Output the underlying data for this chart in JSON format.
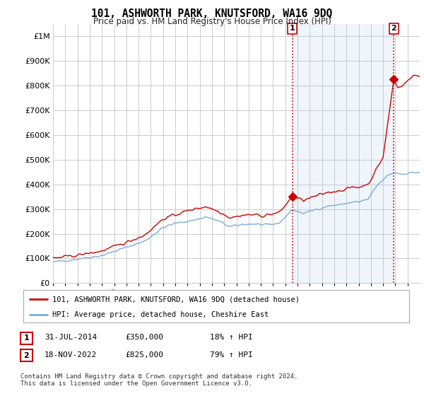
{
  "title": "101, ASHWORTH PARK, KNUTSFORD, WA16 9DQ",
  "subtitle": "Price paid vs. HM Land Registry's House Price Index (HPI)",
  "legend_line1": "101, ASHWORTH PARK, KNUTSFORD, WA16 9DQ (detached house)",
  "legend_line2": "HPI: Average price, detached house, Cheshire East",
  "footnote": "Contains HM Land Registry data © Crown copyright and database right 2024.\nThis data is licensed under the Open Government Licence v3.0.",
  "annotation1_date": "31-JUL-2014",
  "annotation1_price": "£350,000",
  "annotation1_hpi": "18% ↑ HPI",
  "annotation2_date": "18-NOV-2022",
  "annotation2_price": "£825,000",
  "annotation2_hpi": "79% ↑ HPI",
  "hpi_color": "#7aaddb",
  "sale_color": "#cc0000",
  "shade_color": "#ddeeff",
  "background_color": "#ffffff",
  "grid_color": "#cccccc",
  "sale1_x": 2014.58,
  "sale1_y": 350000,
  "sale2_x": 2022.88,
  "sale2_y": 825000,
  "ylim": [
    0,
    1050000
  ],
  "yticks": [
    0,
    100000,
    200000,
    300000,
    400000,
    500000,
    600000,
    700000,
    800000,
    900000,
    1000000
  ],
  "ytick_labels": [
    "£0",
    "£100K",
    "£200K",
    "£300K",
    "£400K",
    "£500K",
    "£600K",
    "£700K",
    "£800K",
    "£900K",
    "£1M"
  ],
  "xmin": 1995,
  "xmax": 2025
}
